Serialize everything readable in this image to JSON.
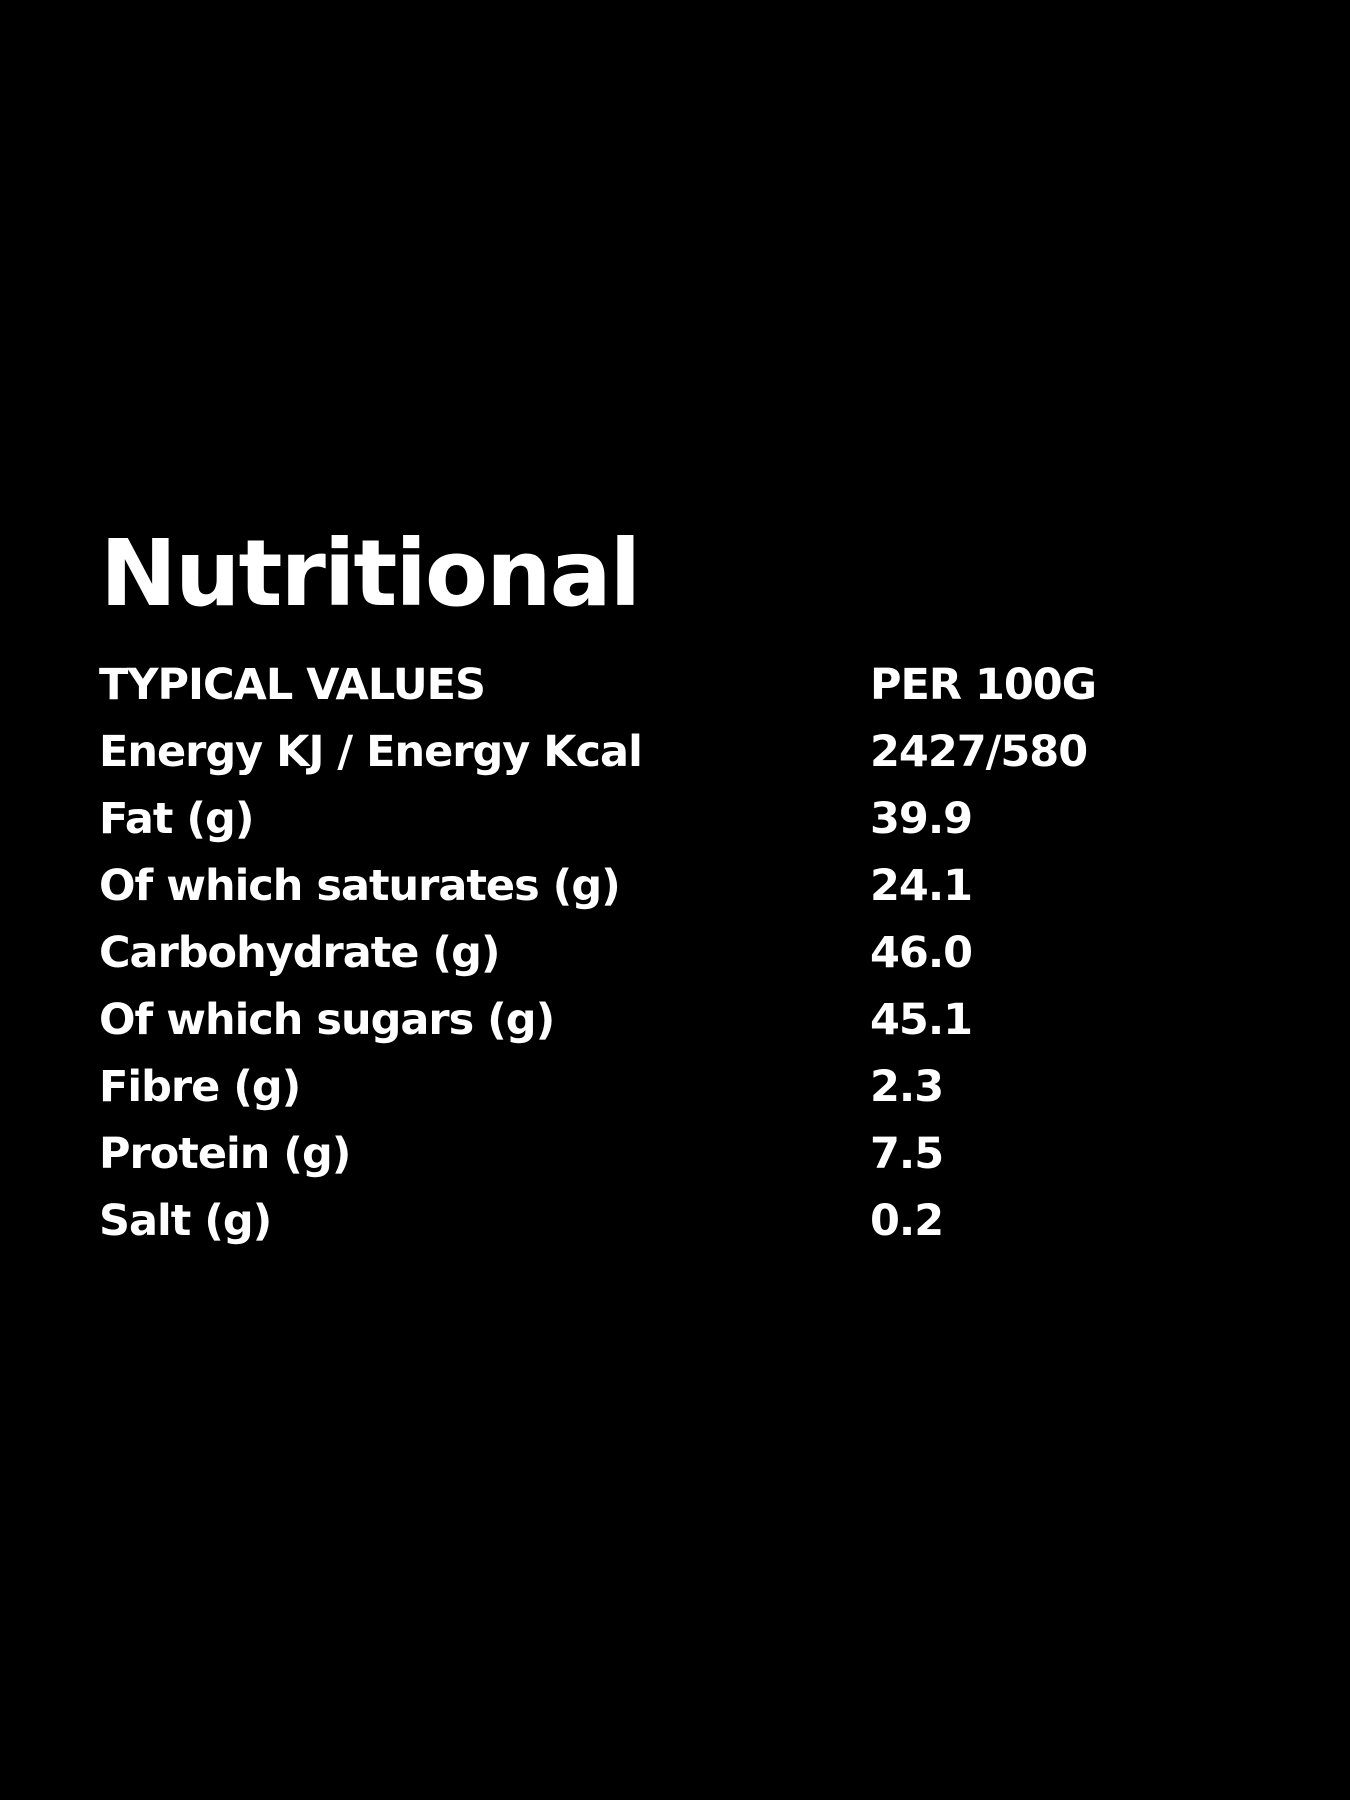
{
  "title": "Nutritional",
  "table": {
    "header": [
      "TYPICAL VALUES",
      "PER 100G"
    ],
    "rows": [
      [
        "Energy KJ / Energy Kcal",
        "2427/580"
      ],
      [
        "Fat (g)",
        "39.9"
      ],
      [
        "Of which saturates (g)",
        "24.1"
      ],
      [
        "Carbohydrate (g)",
        "46.0"
      ],
      [
        "Of which sugars (g)",
        "45.1"
      ],
      [
        "Fibre (g)",
        "2.3"
      ],
      [
        "Protein (g)",
        "7.5"
      ],
      [
        "Salt (g)",
        "0.2"
      ]
    ]
  }
}
